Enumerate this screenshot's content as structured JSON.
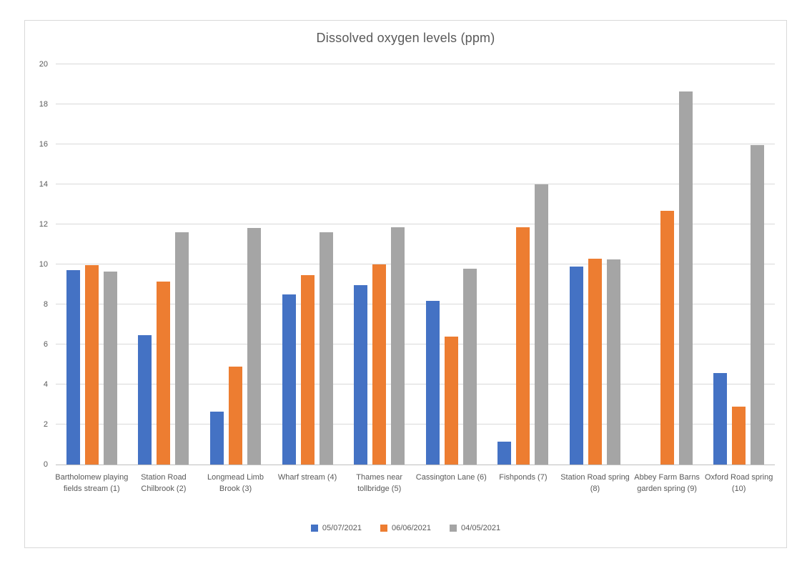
{
  "chart_data": {
    "type": "bar",
    "title": "Dissolved oxygen levels (ppm)",
    "categories": [
      "Bartholomew playing fields stream (1)",
      "Station Road Chilbrook (2)",
      "Longmead Limb Brook (3)",
      "Wharf stream (4)",
      "Thames near tollbridge (5)",
      "Cassington Lane (6)",
      "Fishponds (7)",
      "Station Road spring (8)",
      "Abbey Farm Barns garden spring (9)",
      "Oxford Road spring (10)"
    ],
    "series": [
      {
        "name": "05/07/2021",
        "color": "#4472C4",
        "values": [
          9.7,
          6.45,
          2.65,
          8.5,
          8.95,
          8.18,
          1.15,
          9.9,
          0,
          4.58
        ]
      },
      {
        "name": "06/06/2021",
        "color": "#ED7D31",
        "values": [
          9.98,
          9.15,
          4.9,
          9.45,
          10.0,
          6.4,
          11.85,
          10.3,
          12.68,
          2.9
        ]
      },
      {
        "name": "04/05/2021",
        "color": "#A5A5A5",
        "values": [
          9.65,
          11.6,
          11.82,
          11.6,
          11.85,
          9.8,
          14.0,
          10.25,
          18.65,
          15.95
        ]
      }
    ],
    "xlabel": "",
    "ylabel": "",
    "ylim": [
      0,
      20
    ],
    "ytick_step": 2,
    "grid": true,
    "legend_position": "bottom",
    "text_color": "#595959",
    "gridline_color": "#D9D9D9",
    "axis_line_color": "#BFBFBF",
    "frame_border_color": "#D9D9D9"
  }
}
